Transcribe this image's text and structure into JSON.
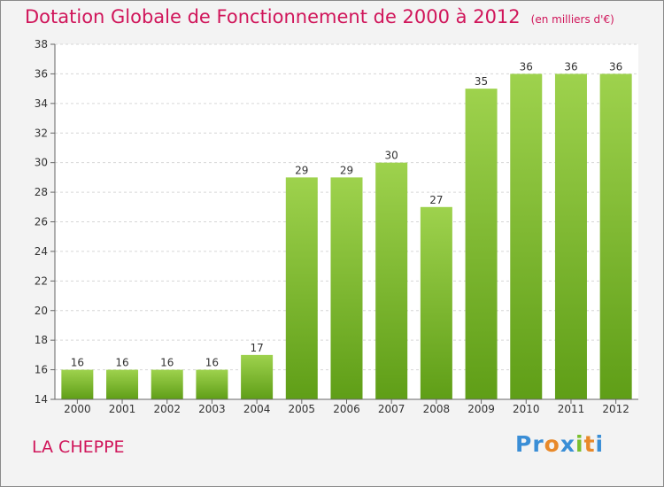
{
  "title": "Dotation Globale de Fonctionnement de 2000 à 2012",
  "unit_note": "(en milliers d'€)",
  "commune": "LA CHEPPE",
  "logo": {
    "text": "Proxiti",
    "letters": [
      "P",
      "r",
      "o",
      "x",
      "i",
      "t",
      "i"
    ],
    "colors": [
      "#3a8ed6",
      "#3a8ed6",
      "#e8892a",
      "#3a8ed6",
      "#7abf2e",
      "#e8892a",
      "#3a8ed6"
    ]
  },
  "colors": {
    "accent": "#d0155a",
    "bar_top": "#9ed24d",
    "bar_bottom": "#5f9e17",
    "background": "#f3f3f3",
    "plot_background": "#ffffff",
    "grid": "#d6d6d6"
  },
  "chart_data": {
    "type": "bar",
    "categories": [
      "2000",
      "2001",
      "2002",
      "2003",
      "2004",
      "2005",
      "2006",
      "2007",
      "2008",
      "2009",
      "2010",
      "2011",
      "2012"
    ],
    "values": [
      16,
      16,
      16,
      16,
      17,
      29,
      29,
      30,
      27,
      35,
      36,
      36,
      36
    ],
    "title": "Dotation Globale de Fonctionnement de 2000 à 2012",
    "subtitle": "(en milliers d'€)",
    "xlabel": "",
    "ylabel": "",
    "ylim": [
      14,
      38
    ],
    "yticks": [
      14,
      16,
      18,
      20,
      22,
      24,
      26,
      28,
      30,
      32,
      34,
      36,
      38
    ],
    "grid": true,
    "grid_style": "dashed-horizontal",
    "data_labels": true
  }
}
